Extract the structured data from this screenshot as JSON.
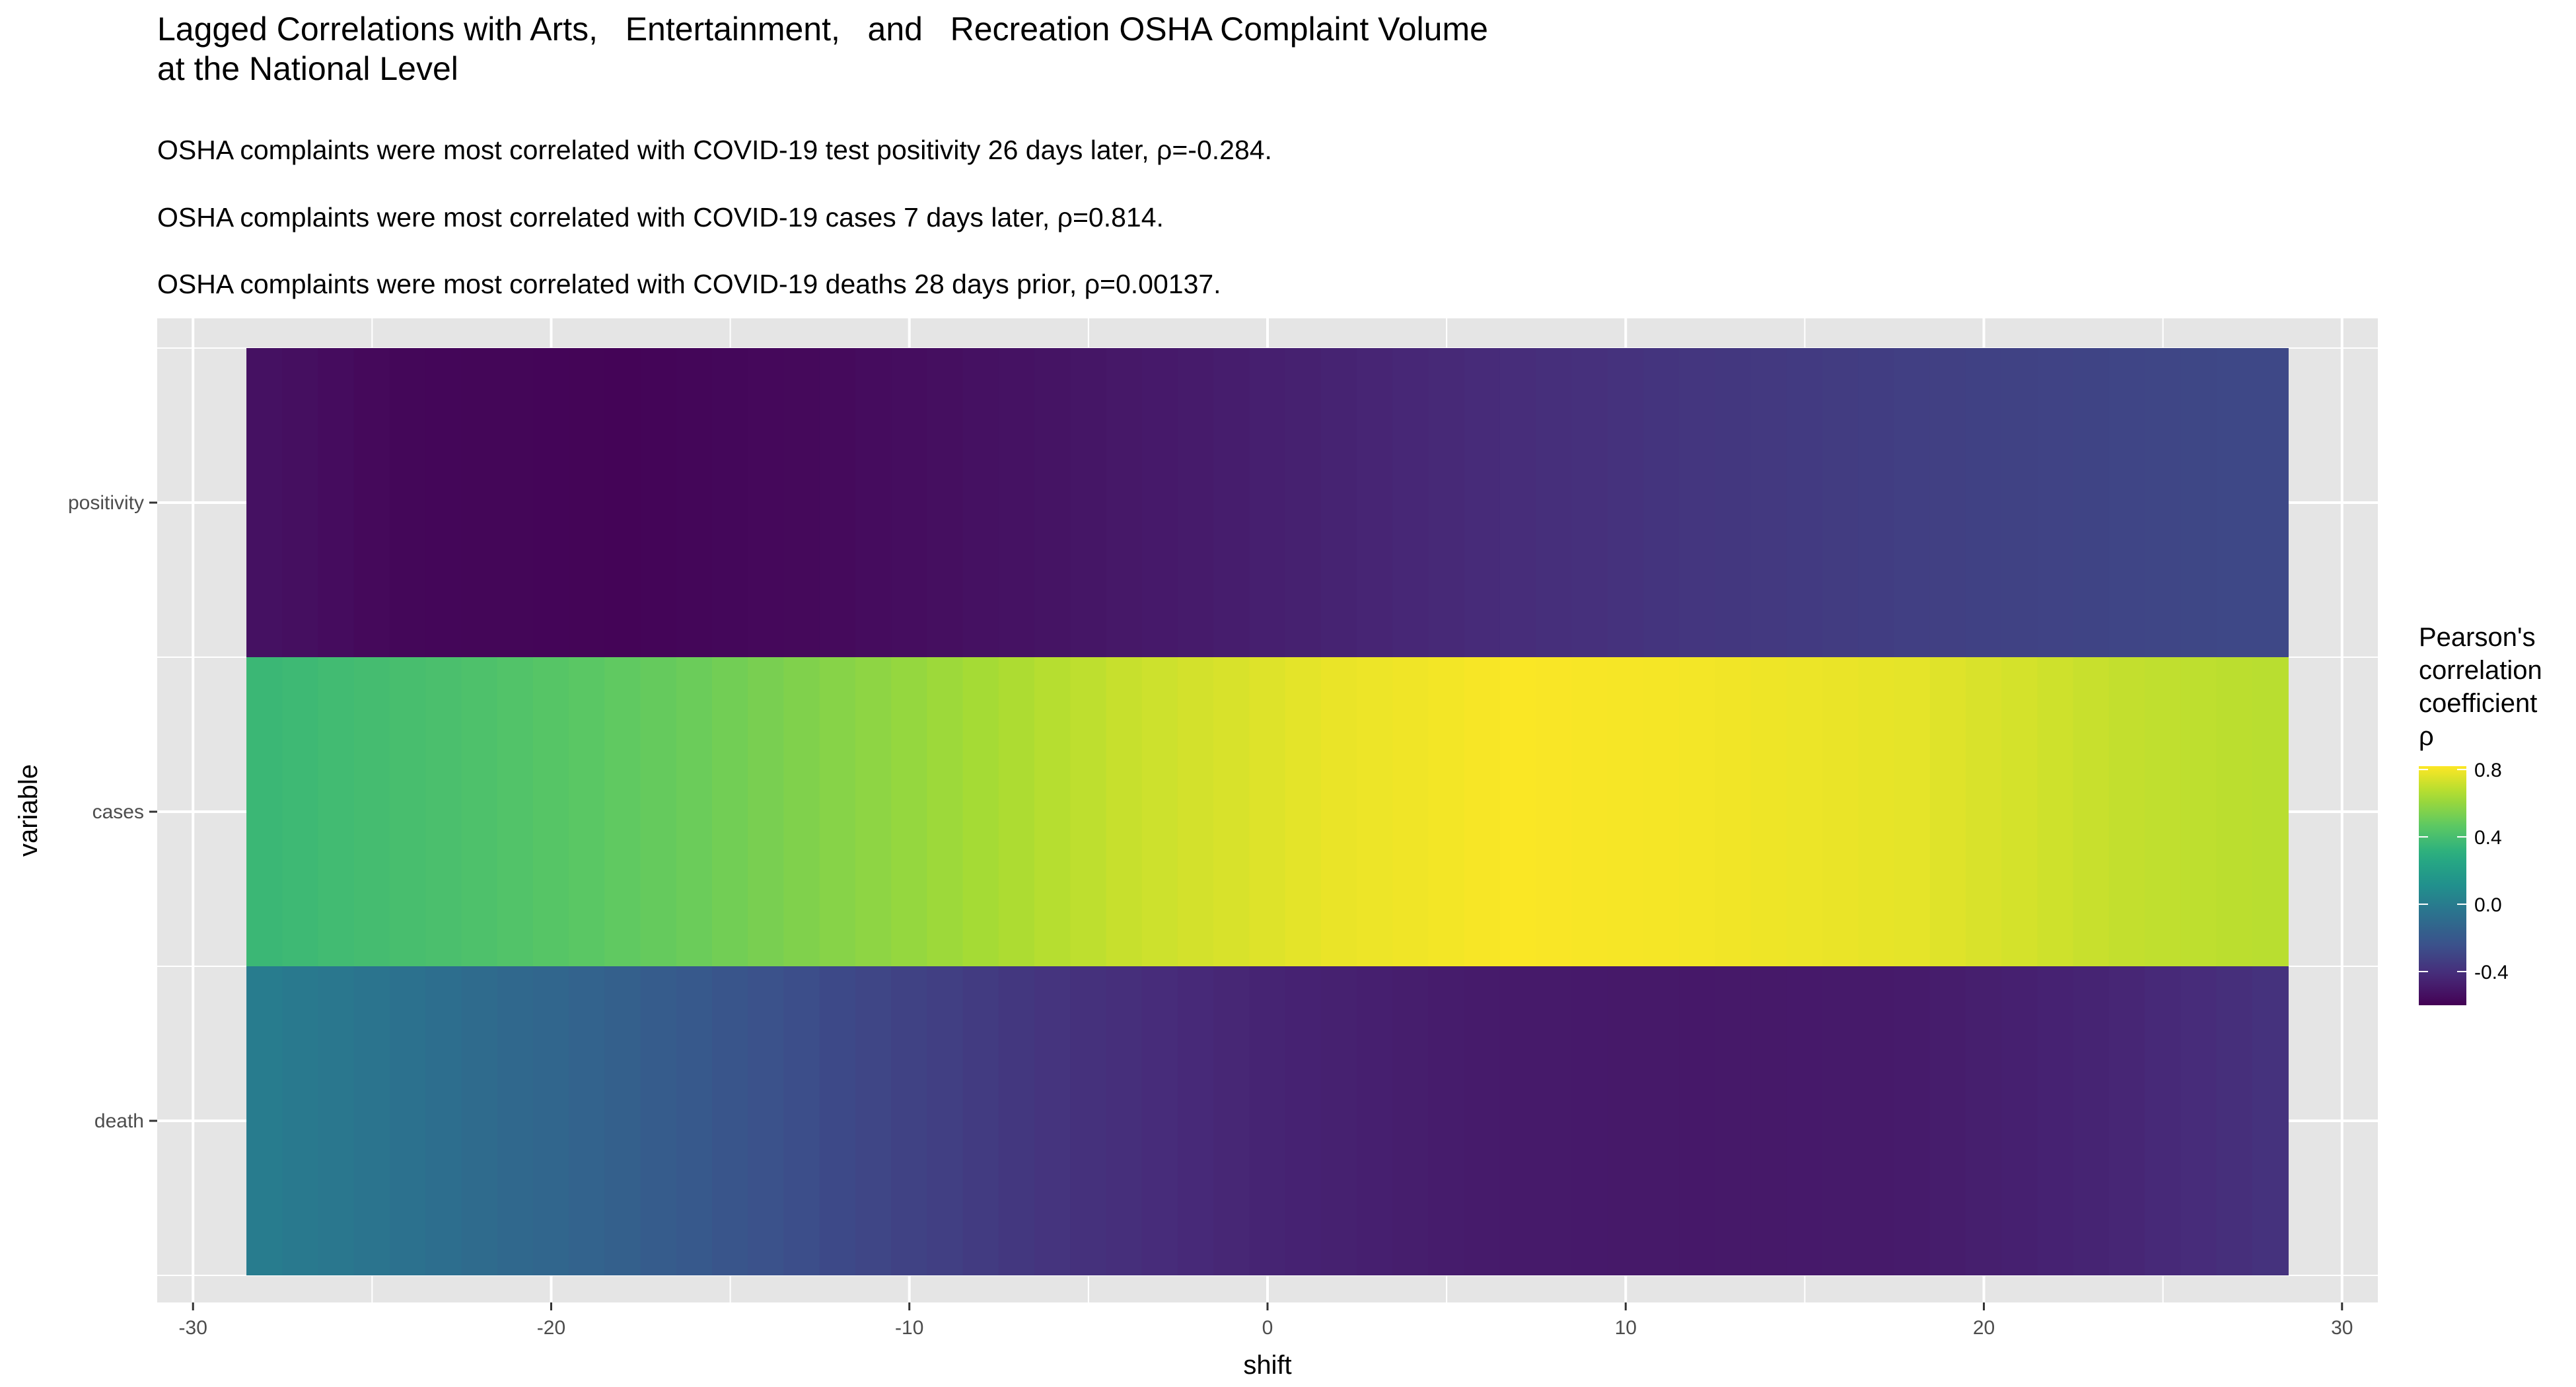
{
  "chart_data": {
    "type": "heatmap",
    "title_lines": [
      "Lagged Correlations with Arts,   Entertainment,   and   Recreation OSHA Complaint Volume",
      "at the National Level"
    ],
    "subtitles": [
      "OSHA complaints were most correlated with COVID-19 test positivity 26 days later, ρ=-0.284.",
      "OSHA complaints were most correlated with COVID-19 cases 7 days later, ρ=0.814.",
      "OSHA complaints were most correlated with COVID-19 deaths 28 days prior, ρ=0.00137."
    ],
    "xlabel": "shift",
    "ylabel": "variable",
    "xlim": [
      -31,
      31
    ],
    "x_ticks": [
      -30,
      -20,
      -10,
      0,
      10,
      20,
      30
    ],
    "x_tick_labels": [
      "-30",
      "-20",
      "-10",
      "0",
      "10",
      "20",
      "30"
    ],
    "rows": [
      "positivity",
      "cases",
      "death"
    ],
    "shift_range": [
      -28,
      28
    ],
    "series": [
      {
        "name": "positivity",
        "anchors": [
          [
            -28,
            -0.53
          ],
          [
            -24,
            -0.575
          ],
          [
            -18,
            -0.585
          ],
          [
            -12,
            -0.56
          ],
          [
            -6,
            -0.52
          ],
          [
            0,
            -0.47
          ],
          [
            6,
            -0.42
          ],
          [
            12,
            -0.37
          ],
          [
            18,
            -0.33
          ],
          [
            24,
            -0.3
          ],
          [
            28,
            -0.285
          ]
        ]
      },
      {
        "name": "cases",
        "anchors": [
          [
            -28,
            0.36
          ],
          [
            -22,
            0.42
          ],
          [
            -16,
            0.5
          ],
          [
            -10,
            0.6
          ],
          [
            -4,
            0.71
          ],
          [
            2,
            0.78
          ],
          [
            7,
            0.814
          ],
          [
            12,
            0.8
          ],
          [
            18,
            0.77
          ],
          [
            24,
            0.7
          ],
          [
            28,
            0.68
          ]
        ]
      },
      {
        "name": "death",
        "anchors": [
          [
            -28,
            0.0014
          ],
          [
            -24,
            -0.06
          ],
          [
            -18,
            -0.16
          ],
          [
            -12,
            -0.28
          ],
          [
            -6,
            -0.38
          ],
          [
            0,
            -0.45
          ],
          [
            6,
            -0.49
          ],
          [
            12,
            -0.5
          ],
          [
            18,
            -0.49
          ],
          [
            24,
            -0.44
          ],
          [
            28,
            -0.39
          ]
        ]
      }
    ],
    "legend": {
      "title_lines": [
        "Pearson's",
        "correlation",
        "coefficient",
        "ρ"
      ],
      "range": [
        -0.6,
        0.82
      ],
      "ticks": [
        0.8,
        0.4,
        0.0,
        -0.4
      ],
      "tick_labels": [
        "0.8",
        "0.4",
        "0.0",
        "-0.4"
      ],
      "placement": "right"
    },
    "colorscale": "viridis",
    "panel_background": "#e5e5e5",
    "grid_color": "#ffffff",
    "grid": true
  }
}
